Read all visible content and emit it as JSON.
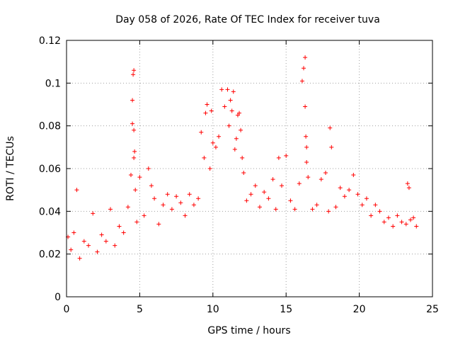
{
  "chart_data": {
    "type": "scatter",
    "title": "Day 058 of 2026, Rate Of TEC Index for receiver tuva",
    "xlabel": "GPS time / hours",
    "ylabel": "ROTI / TECUs",
    "xlim": [
      0,
      25
    ],
    "ylim": [
      0,
      0.12
    ],
    "x_ticks": [
      "0",
      "5",
      "10",
      "15",
      "20",
      "25"
    ],
    "y_ticks": [
      "0",
      "0.02",
      "0.04",
      "0.06",
      "0.08",
      "0.1",
      "0.12"
    ],
    "grid": true,
    "marker": "+",
    "color": "#ff0000",
    "legend": "none",
    "series": [
      {
        "x": [
          0.1,
          0.3,
          0.5,
          0.7,
          0.9,
          1.2,
          1.5,
          1.8,
          2.1,
          2.4,
          2.7,
          3.0,
          3.3,
          3.6,
          3.9,
          4.2,
          4.4,
          4.5,
          4.5,
          4.55,
          4.6,
          4.6,
          4.6,
          4.65,
          4.7,
          4.8,
          5.0,
          5.3,
          5.6,
          5.8,
          6.0,
          6.3,
          6.6,
          6.9,
          7.2,
          7.5,
          7.8,
          8.1,
          8.4,
          8.7,
          9.0,
          9.2,
          9.4,
          9.5,
          9.6,
          9.8,
          9.9,
          10.0,
          10.2,
          10.4,
          10.6,
          10.8,
          11.0,
          11.1,
          11.2,
          11.3,
          11.4,
          11.5,
          11.6,
          11.7,
          11.8,
          11.9,
          12.0,
          12.1,
          12.3,
          12.6,
          12.9,
          13.2,
          13.5,
          13.8,
          14.1,
          14.3,
          14.5,
          14.7,
          15.0,
          15.3,
          15.6,
          15.9,
          16.1,
          16.2,
          16.3,
          16.3,
          16.35,
          16.4,
          16.4,
          16.5,
          16.8,
          17.1,
          17.4,
          17.7,
          17.9,
          18.0,
          18.1,
          18.4,
          18.7,
          19.0,
          19.3,
          19.6,
          19.9,
          20.2,
          20.5,
          20.8,
          21.1,
          21.4,
          21.7,
          22.0,
          22.3,
          22.6,
          22.9,
          23.2,
          23.3,
          23.4,
          23.5,
          23.7,
          23.9
        ],
        "y": [
          0.028,
          0.022,
          0.03,
          0.05,
          0.018,
          0.026,
          0.024,
          0.039,
          0.021,
          0.029,
          0.026,
          0.041,
          0.024,
          0.033,
          0.03,
          0.042,
          0.057,
          0.081,
          0.092,
          0.104,
          0.106,
          0.078,
          0.065,
          0.068,
          0.05,
          0.035,
          0.056,
          0.038,
          0.06,
          0.052,
          0.046,
          0.034,
          0.043,
          0.048,
          0.041,
          0.047,
          0.044,
          0.038,
          0.048,
          0.043,
          0.046,
          0.077,
          0.065,
          0.086,
          0.09,
          0.06,
          0.087,
          0.072,
          0.07,
          0.075,
          0.097,
          0.089,
          0.097,
          0.08,
          0.092,
          0.087,
          0.096,
          0.069,
          0.074,
          0.085,
          0.086,
          0.078,
          0.065,
          0.058,
          0.045,
          0.048,
          0.052,
          0.042,
          0.049,
          0.046,
          0.055,
          0.041,
          0.065,
          0.052,
          0.066,
          0.045,
          0.041,
          0.053,
          0.101,
          0.107,
          0.112,
          0.089,
          0.075,
          0.07,
          0.063,
          0.056,
          0.041,
          0.043,
          0.055,
          0.058,
          0.04,
          0.079,
          0.07,
          0.042,
          0.051,
          0.047,
          0.05,
          0.057,
          0.048,
          0.043,
          0.046,
          0.038,
          0.043,
          0.04,
          0.035,
          0.037,
          0.033,
          0.038,
          0.035,
          0.034,
          0.053,
          0.051,
          0.036,
          0.037,
          0.033
        ]
      }
    ]
  }
}
